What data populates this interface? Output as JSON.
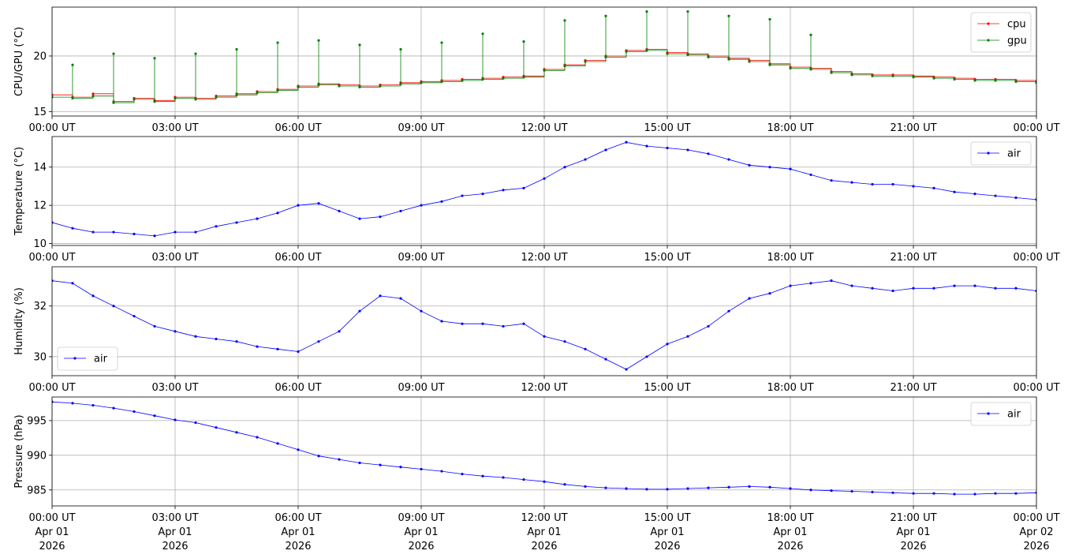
{
  "chart_data": [
    {
      "type": "line",
      "ylabel": "CPU/GPU (°C)",
      "ylim": [
        14.6,
        24.4
      ],
      "yticks": [
        "15",
        "20"
      ],
      "grid": true,
      "legend": {
        "placement": "top-right",
        "entries": [
          "cpu",
          "gpu"
        ]
      },
      "x": [
        "00:00",
        "00:30",
        "01:00",
        "01:30",
        "02:00",
        "02:30",
        "03:00",
        "03:30",
        "04:00",
        "04:30",
        "05:00",
        "05:30",
        "06:00",
        "06:30",
        "07:00",
        "07:30",
        "08:00",
        "08:30",
        "09:00",
        "09:30",
        "10:00",
        "10:30",
        "11:00",
        "11:30",
        "12:00",
        "12:30",
        "13:00",
        "13:30",
        "14:00",
        "14:30",
        "15:00",
        "15:30",
        "16:00",
        "16:30",
        "17:00",
        "17:30",
        "18:00",
        "18:30",
        "19:00",
        "19:30",
        "20:00",
        "20:30",
        "21:00",
        "21:30",
        "22:00",
        "22:30",
        "23:00",
        "23:30",
        "24:00"
      ],
      "series": [
        {
          "name": "cpu",
          "color": "#ff0000",
          "values": [
            16.5,
            16.3,
            16.6,
            15.9,
            16.2,
            16.0,
            16.3,
            16.2,
            16.4,
            16.6,
            16.8,
            17.0,
            17.3,
            17.5,
            17.4,
            17.3,
            17.4,
            17.6,
            17.7,
            17.8,
            17.9,
            18.0,
            18.1,
            18.2,
            18.8,
            19.2,
            19.6,
            20.0,
            20.5,
            20.6,
            20.3,
            20.2,
            20.0,
            19.8,
            19.6,
            19.3,
            19.0,
            18.9,
            18.6,
            18.4,
            18.3,
            18.3,
            18.2,
            18.1,
            18.0,
            17.9,
            17.9,
            17.8,
            17.7
          ]
        },
        {
          "name": "gpu",
          "color": "#008000",
          "values": [
            16.3,
            16.2,
            16.4,
            15.8,
            16.1,
            15.9,
            16.2,
            16.1,
            16.3,
            16.5,
            16.7,
            16.9,
            17.2,
            17.4,
            17.3,
            17.2,
            17.3,
            17.5,
            17.6,
            17.7,
            17.8,
            17.9,
            18.0,
            18.1,
            18.7,
            19.1,
            19.5,
            19.9,
            20.4,
            20.5,
            20.2,
            20.1,
            19.9,
            19.7,
            19.5,
            19.2,
            18.9,
            18.8,
            18.5,
            18.3,
            18.2,
            18.2,
            18.1,
            18.0,
            17.9,
            17.8,
            17.8,
            17.7,
            17.6
          ]
        }
      ],
      "spikes": [
        {
          "x": "00:30",
          "y": 19.2
        },
        {
          "x": "01:30",
          "y": 20.2
        },
        {
          "x": "02:30",
          "y": 19.8
        },
        {
          "x": "03:30",
          "y": 20.2
        },
        {
          "x": "04:30",
          "y": 20.6
        },
        {
          "x": "05:30",
          "y": 21.2
        },
        {
          "x": "06:30",
          "y": 21.4
        },
        {
          "x": "07:30",
          "y": 21.0
        },
        {
          "x": "08:30",
          "y": 20.6
        },
        {
          "x": "09:30",
          "y": 21.2
        },
        {
          "x": "10:30",
          "y": 22.0
        },
        {
          "x": "11:30",
          "y": 21.3
        },
        {
          "x": "12:30",
          "y": 23.2
        },
        {
          "x": "13:30",
          "y": 23.6
        },
        {
          "x": "14:30",
          "y": 24.0
        },
        {
          "x": "15:30",
          "y": 24.0
        },
        {
          "x": "16:30",
          "y": 23.6
        },
        {
          "x": "17:30",
          "y": 23.3
        },
        {
          "x": "18:30",
          "y": 21.9
        }
      ]
    },
    {
      "type": "line",
      "ylabel": "Temperature (°C)",
      "ylim": [
        9.9,
        15.6
      ],
      "yticks": [
        "10",
        "12",
        "14"
      ],
      "grid": true,
      "legend": {
        "placement": "top-right",
        "entries": [
          "air"
        ]
      },
      "x": [
        "00:00",
        "00:30",
        "01:00",
        "01:30",
        "02:00",
        "02:30",
        "03:00",
        "03:30",
        "04:00",
        "04:30",
        "05:00",
        "05:30",
        "06:00",
        "06:30",
        "07:00",
        "07:30",
        "08:00",
        "08:30",
        "09:00",
        "09:30",
        "10:00",
        "10:30",
        "11:00",
        "11:30",
        "12:00",
        "12:30",
        "13:00",
        "13:30",
        "14:00",
        "14:30",
        "15:00",
        "15:30",
        "16:00",
        "16:30",
        "17:00",
        "17:30",
        "18:00",
        "18:30",
        "19:00",
        "19:30",
        "20:00",
        "20:30",
        "21:00",
        "21:30",
        "22:00",
        "22:30",
        "23:00",
        "23:30",
        "24:00"
      ],
      "series": [
        {
          "name": "air",
          "color": "#0000ff",
          "values": [
            11.1,
            10.8,
            10.6,
            10.6,
            10.5,
            10.4,
            10.6,
            10.6,
            10.9,
            11.1,
            11.3,
            11.6,
            12.0,
            12.1,
            11.7,
            11.3,
            11.4,
            11.7,
            12.0,
            12.2,
            12.5,
            12.6,
            12.8,
            12.9,
            13.4,
            14.0,
            14.4,
            14.9,
            15.3,
            15.1,
            15.0,
            14.9,
            14.7,
            14.4,
            14.1,
            14.0,
            13.9,
            13.6,
            13.3,
            13.2,
            13.1,
            13.1,
            13.0,
            12.9,
            12.7,
            12.6,
            12.5,
            12.4,
            12.3
          ]
        }
      ]
    },
    {
      "type": "line",
      "ylabel": "Humidity (%)",
      "ylim": [
        29.25,
        33.55
      ],
      "yticks": [
        "30",
        "32"
      ],
      "grid": true,
      "legend": {
        "placement": "bottom-left",
        "entries": [
          "air"
        ]
      },
      "x": [
        "00:00",
        "00:30",
        "01:00",
        "01:30",
        "02:00",
        "02:30",
        "03:00",
        "03:30",
        "04:00",
        "04:30",
        "05:00",
        "05:30",
        "06:00",
        "06:30",
        "07:00",
        "07:30",
        "08:00",
        "08:30",
        "09:00",
        "09:30",
        "10:00",
        "10:30",
        "11:00",
        "11:30",
        "12:00",
        "12:30",
        "13:00",
        "13:30",
        "14:00",
        "14:30",
        "15:00",
        "15:30",
        "16:00",
        "16:30",
        "17:00",
        "17:30",
        "18:00",
        "18:30",
        "19:00",
        "19:30",
        "20:00",
        "20:30",
        "21:00",
        "21:30",
        "22:00",
        "22:30",
        "23:00",
        "23:30",
        "24:00"
      ],
      "series": [
        {
          "name": "air",
          "color": "#0000ff",
          "values": [
            33.0,
            32.9,
            32.4,
            32.0,
            31.6,
            31.2,
            31.0,
            30.8,
            30.7,
            30.6,
            30.4,
            30.3,
            30.2,
            30.6,
            31.0,
            31.8,
            32.4,
            32.3,
            31.8,
            31.4,
            31.3,
            31.3,
            31.2,
            31.3,
            30.8,
            30.6,
            30.3,
            29.9,
            29.5,
            30.0,
            30.5,
            30.8,
            31.2,
            31.8,
            32.3,
            32.5,
            32.8,
            32.9,
            33.0,
            32.8,
            32.7,
            32.6,
            32.7,
            32.7,
            32.8,
            32.8,
            32.7,
            32.7,
            32.6
          ]
        }
      ]
    },
    {
      "type": "line",
      "ylabel": "Pressure (hPa)",
      "ylim": [
        982.7,
        998.4
      ],
      "yticks": [
        "985",
        "990",
        "995"
      ],
      "grid": true,
      "legend": {
        "placement": "top-right",
        "entries": [
          "air"
        ]
      },
      "x": [
        "00:00",
        "00:30",
        "01:00",
        "01:30",
        "02:00",
        "02:30",
        "03:00",
        "03:30",
        "04:00",
        "04:30",
        "05:00",
        "05:30",
        "06:00",
        "06:30",
        "07:00",
        "07:30",
        "08:00",
        "08:30",
        "09:00",
        "09:30",
        "10:00",
        "10:30",
        "11:00",
        "11:30",
        "12:00",
        "12:30",
        "13:00",
        "13:30",
        "14:00",
        "14:30",
        "15:00",
        "15:30",
        "16:00",
        "16:30",
        "17:00",
        "17:30",
        "18:00",
        "18:30",
        "19:00",
        "19:30",
        "20:00",
        "20:30",
        "21:00",
        "21:30",
        "22:00",
        "22:30",
        "23:00",
        "23:30",
        "24:00"
      ],
      "series": [
        {
          "name": "air",
          "color": "#0000ff",
          "values": [
            997.7,
            997.5,
            997.2,
            996.8,
            996.3,
            995.7,
            995.1,
            994.7,
            994.0,
            993.3,
            992.6,
            991.7,
            990.8,
            989.9,
            989.4,
            988.9,
            988.6,
            988.3,
            988.0,
            987.7,
            987.3,
            987.0,
            986.8,
            986.5,
            986.2,
            985.8,
            985.5,
            985.3,
            985.2,
            985.1,
            985.1,
            985.2,
            985.3,
            985.4,
            985.5,
            985.4,
            985.2,
            985.0,
            984.9,
            984.8,
            984.7,
            984.6,
            984.5,
            984.5,
            984.4,
            984.4,
            984.5,
            984.5,
            984.6
          ]
        }
      ]
    }
  ],
  "xaxis": {
    "ticks": [
      {
        "time": "00:00 UT",
        "date1": "Apr 01",
        "date2": "2026"
      },
      {
        "time": "03:00 UT",
        "date1": "Apr 01",
        "date2": "2026"
      },
      {
        "time": "06:00 UT",
        "date1": "Apr 01",
        "date2": "2026"
      },
      {
        "time": "09:00 UT",
        "date1": "Apr 01",
        "date2": "2026"
      },
      {
        "time": "12:00 UT",
        "date1": "Apr 01",
        "date2": "2026"
      },
      {
        "time": "15:00 UT",
        "date1": "Apr 01",
        "date2": "2026"
      },
      {
        "time": "18:00 UT",
        "date1": "Apr 01",
        "date2": "2026"
      },
      {
        "time": "21:00 UT",
        "date1": "Apr 01",
        "date2": "2026"
      },
      {
        "time": "00:00 UT",
        "date1": "Apr 02",
        "date2": "2026"
      }
    ]
  },
  "colors": {
    "grid": "#b0b0b0",
    "axes": "#000000",
    "legend_border": "#cccccc"
  }
}
